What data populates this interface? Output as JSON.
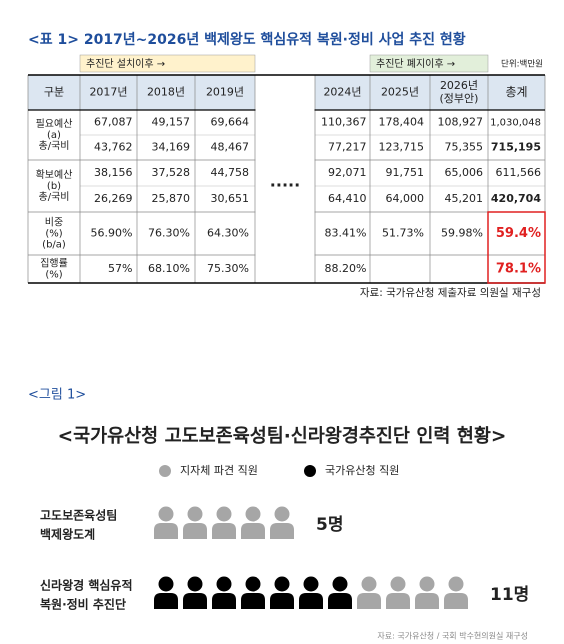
{
  "table_section": {
    "title": "<표 1> 2017년~2026년 백제왕도 핵심유적 복원·정비 사업 추진 현황",
    "band_before": "추진단 설치이후 →",
    "band_after": "추진단 폐지이후 →",
    "unit": "단위:백만원",
    "headers": [
      "구분",
      "2017년",
      "2018년",
      "2019년",
      "2024년",
      "2025년",
      [
        "2026년",
        "(정부안)"
      ],
      "총계"
    ],
    "ellipsis": "·····",
    "rows": [
      {
        "label": [
          "필요예산",
          "(a)",
          "총/국비"
        ],
        "lines": [
          [
            "67,087",
            "49,157",
            "69,664",
            "110,367",
            "178,404",
            "108,927",
            "1,030,048"
          ],
          [
            "43,762",
            "34,169",
            "48,467",
            "77,217",
            "123,715",
            "75,355",
            "715,195"
          ]
        ]
      },
      {
        "label": [
          "확보예산",
          "(b)",
          "총/국비"
        ],
        "lines": [
          [
            "38,156",
            "37,528",
            "44,758",
            "92,071",
            "91,751",
            "65,006",
            "611,566"
          ],
          [
            "26,269",
            "25,870",
            "30,651",
            "64,410",
            "64,000",
            "45,201",
            "420,704"
          ]
        ]
      },
      {
        "label": [
          "비중",
          "(%)",
          "(b/a)"
        ],
        "lines": [
          [
            "56.90%",
            "76.30%",
            "64.30%",
            "83.41%",
            "51.73%",
            "59.98%",
            "59.4%"
          ]
        ]
      },
      {
        "label": [
          "집행률",
          "(%)"
        ],
        "lines": [
          [
            "57%",
            "68.10%",
            "75.30%",
            "88.20%",
            null,
            null,
            "78.1%"
          ]
        ]
      }
    ],
    "source": "자료: 국가유산청 제출자료 의원실 재구성"
  },
  "figure_section": {
    "caption": "<그림 1>",
    "title": "<국가유산청 고도보존육성팀·신라왕경추진단 인력 현황>",
    "legend": [
      {
        "name": "지자체 파견 직원",
        "color": "#a6a6a6"
      },
      {
        "name": "국가유산청 직원",
        "color": "#000000"
      }
    ],
    "rows": [
      {
        "label": [
          "고도보존육성팀",
          "백제왕도계"
        ],
        "counts": [
          5,
          0
        ],
        "total_label": "5명"
      },
      {
        "label": [
          "신라왕경 핵심유적",
          "복원·정비 추진단"
        ],
        "counts": [
          4,
          7
        ],
        "total_label": "11명"
      }
    ],
    "source": "자료: 국가유산청 / 국회 박수현의원실 재구성"
  }
}
